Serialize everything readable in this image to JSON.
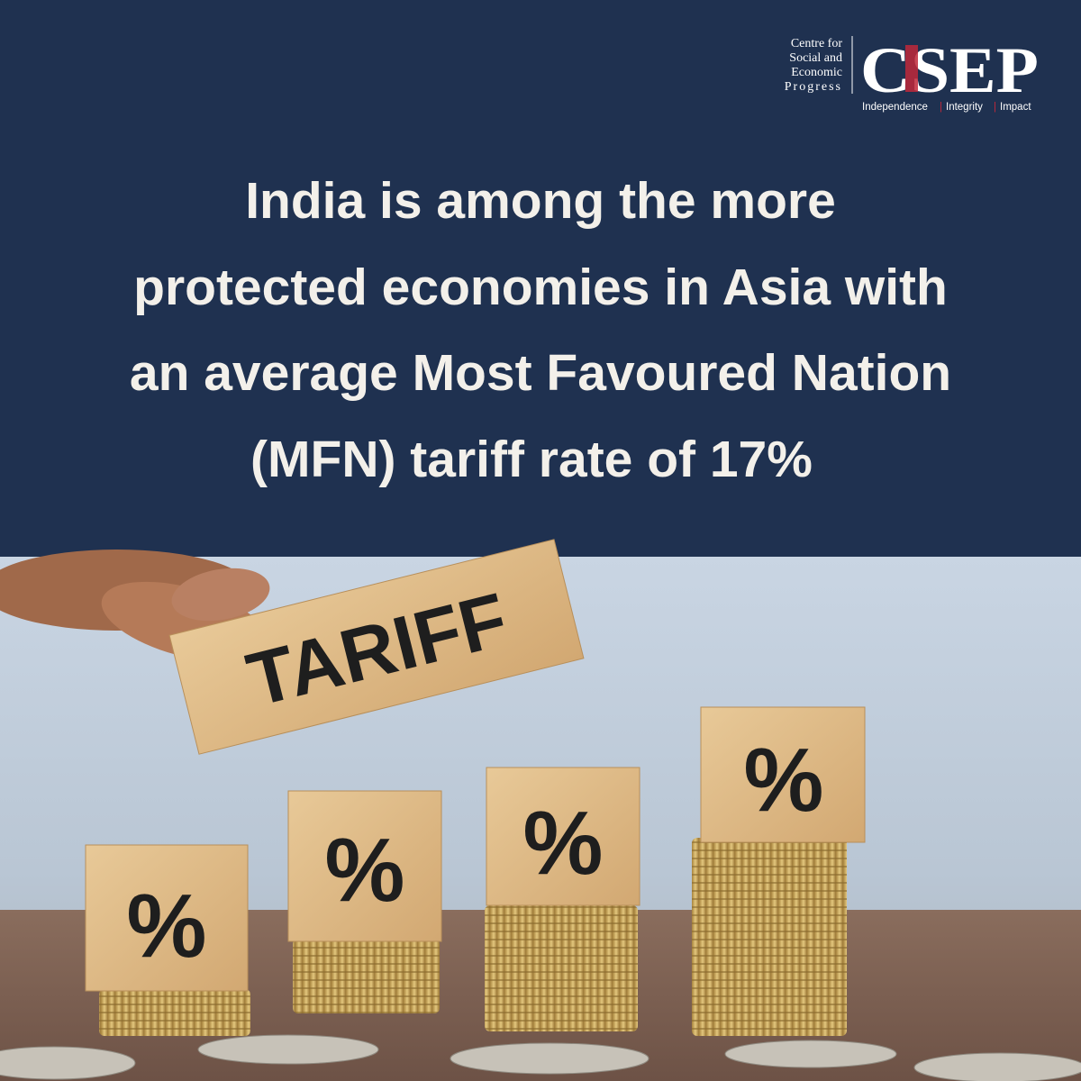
{
  "logo": {
    "name_lines": [
      "Centre for",
      "Social and",
      "Economic",
      "Progress"
    ],
    "wordmark": "CSEP",
    "tagline": [
      "Independence",
      "Integrity",
      "Impact"
    ],
    "separator": "|"
  },
  "headline": [
    "India is among the more",
    "protected economies in Asia with",
    "an average Most Favoured Nation",
    "(MFN) tariff rate of 17%"
  ],
  "image": {
    "sign": "TARIFF",
    "blocks": [
      "%",
      "%",
      "%",
      "%"
    ]
  }
}
